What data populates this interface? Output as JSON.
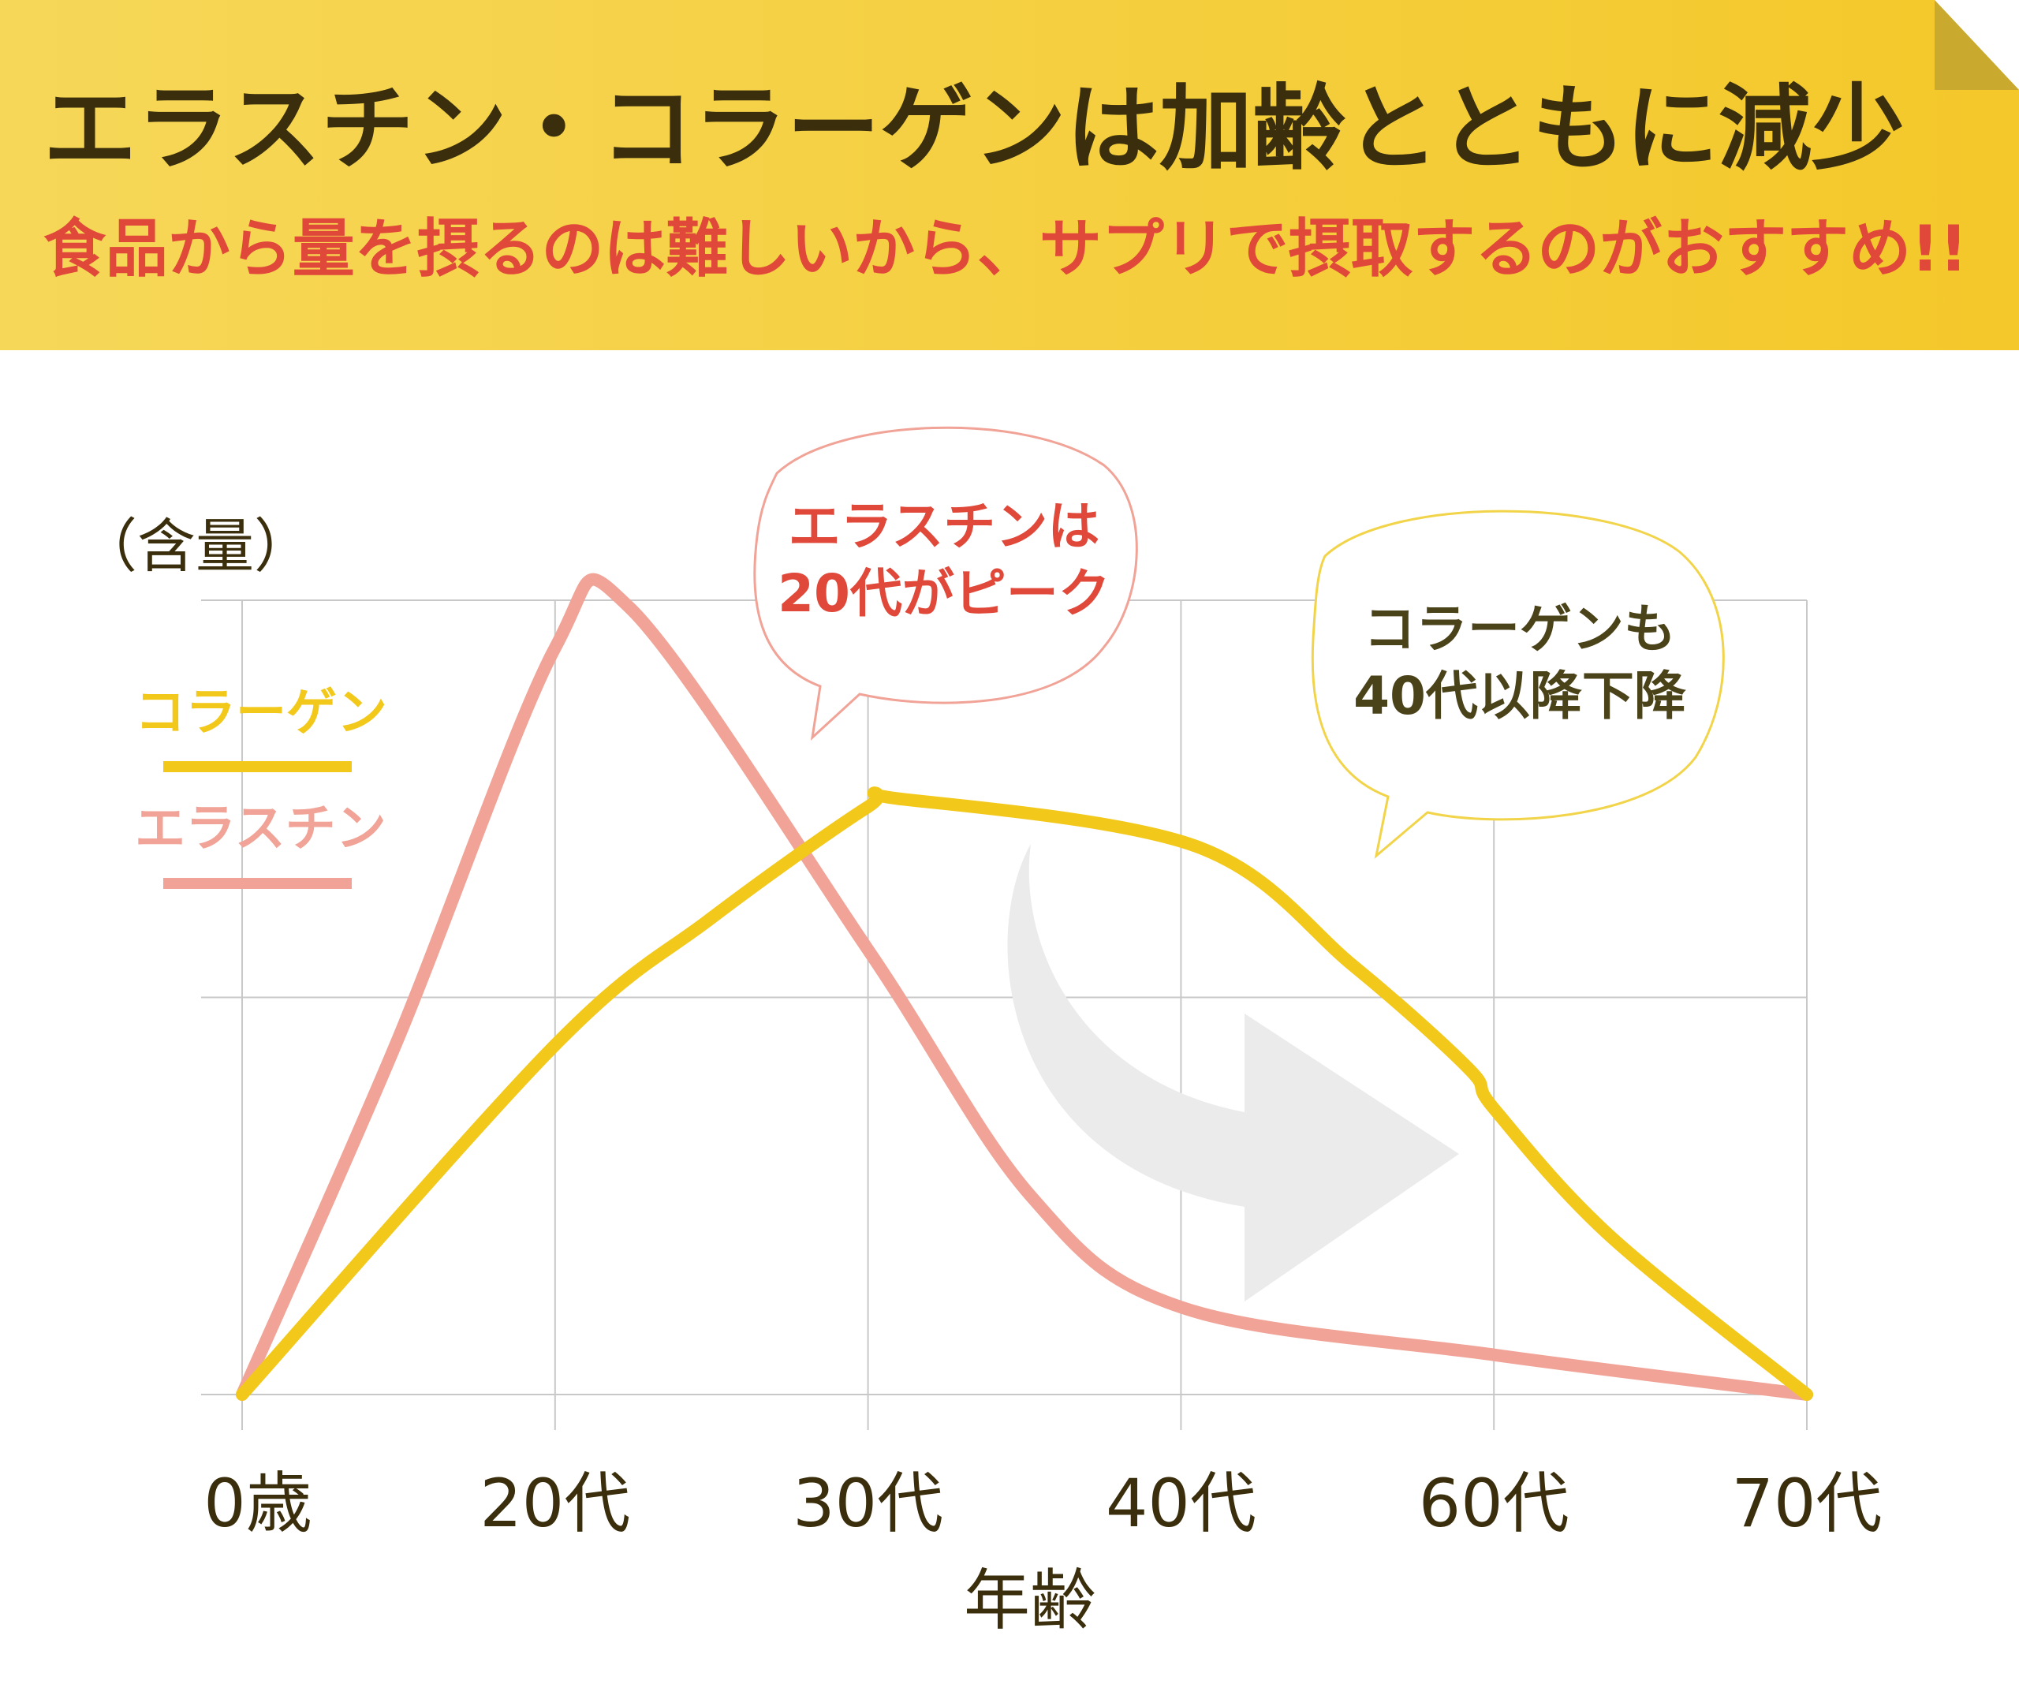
{
  "header": {
    "title": "エラスチン・コラーゲンは加齢とともに減少",
    "subtitle": "食品から量を摂るのは難しいから、サプリで摂取するのがおすすめ!!"
  },
  "chart_data": {
    "type": "line",
    "ylabel": "（含量）",
    "xlabel": "年齢",
    "categories": [
      "0歳",
      "20代",
      "30代",
      "40代",
      "60代",
      "70代"
    ],
    "ylim": [
      0,
      100
    ],
    "grid": true,
    "legend_position": "left",
    "series": [
      {
        "name": "コラーゲン",
        "color": "#f2c81a",
        "points": [
          [
            0,
            0
          ],
          [
            1,
            44
          ],
          [
            1.5,
            60
          ],
          [
            2,
            74
          ],
          [
            2.1,
            75
          ],
          [
            3.05,
            69
          ],
          [
            3.55,
            54
          ],
          [
            3.92,
            41
          ],
          [
            4,
            36
          ],
          [
            4.37,
            20
          ],
          [
            5,
            0
          ]
        ]
      },
      {
        "name": "エラスチン",
        "color": "#f0a396",
        "points": [
          [
            0,
            0
          ],
          [
            0.49,
            44
          ],
          [
            1,
            94
          ],
          [
            1.24,
            99
          ],
          [
            2,
            56
          ],
          [
            2.52,
            25
          ],
          [
            3,
            11
          ],
          [
            4,
            5
          ],
          [
            5,
            0
          ]
        ]
      }
    ],
    "annotations": [
      {
        "lines": [
          "エラスチンは",
          "20代がピーク"
        ],
        "color": "#e0483a"
      },
      {
        "lines": [
          "コラーゲンも",
          "40代以降下降"
        ],
        "color": "#4a4218"
      }
    ]
  }
}
